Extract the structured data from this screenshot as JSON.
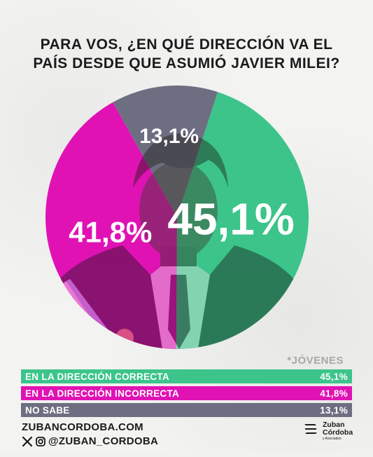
{
  "title": {
    "line1": "PARA VOS, ¿EN QUÉ DIRECCIÓN VA EL",
    "line2": "PAÍS DESDE QUE ASUMIÓ JAVIER MILEI?"
  },
  "subset_note": "*JÓVENES",
  "colors": {
    "correcta": "#3cc48a",
    "incorrecta": "#e012b4",
    "no_sabe": "#6e6e82"
  },
  "chart_data": {
    "type": "pie",
    "title": "PARA VOS, ¿EN QUÉ DIRECCIÓN VA EL PAÍS DESDE QUE ASUMIÓ JAVIER MILEI?",
    "unit": "%",
    "slices": [
      {
        "label": "EN LA DIRECCIÓN CORRECTA",
        "value": 45.1,
        "display": "45,1%",
        "color": "#3cc48a"
      },
      {
        "label": "EN LA DIRECCIÓN INCORRECTA",
        "value": 41.8,
        "display": "41,8%",
        "color": "#e012b4"
      },
      {
        "label": "NO SABE",
        "value": 13.1,
        "display": "13,1%",
        "color": "#6e6e82"
      }
    ]
  },
  "legend_rows": [
    {
      "label": "EN LA DIRECCIÓN CORRECTA",
      "value": "45,1%"
    },
    {
      "label": "EN LA DIRECCIÓN INCORRECTA",
      "value": "41,8%"
    },
    {
      "label": "NO SABE",
      "value": "13,1%"
    }
  ],
  "footer": {
    "website": "ZUBANCORDOBA.COM",
    "social_handle": "@ZUBAN_CORDOBA",
    "icons": [
      "x-icon",
      "instagram-icon"
    ]
  },
  "brand": {
    "line1": "Zuban",
    "line2": "Córdoba",
    "line3": "y Asociados"
  }
}
